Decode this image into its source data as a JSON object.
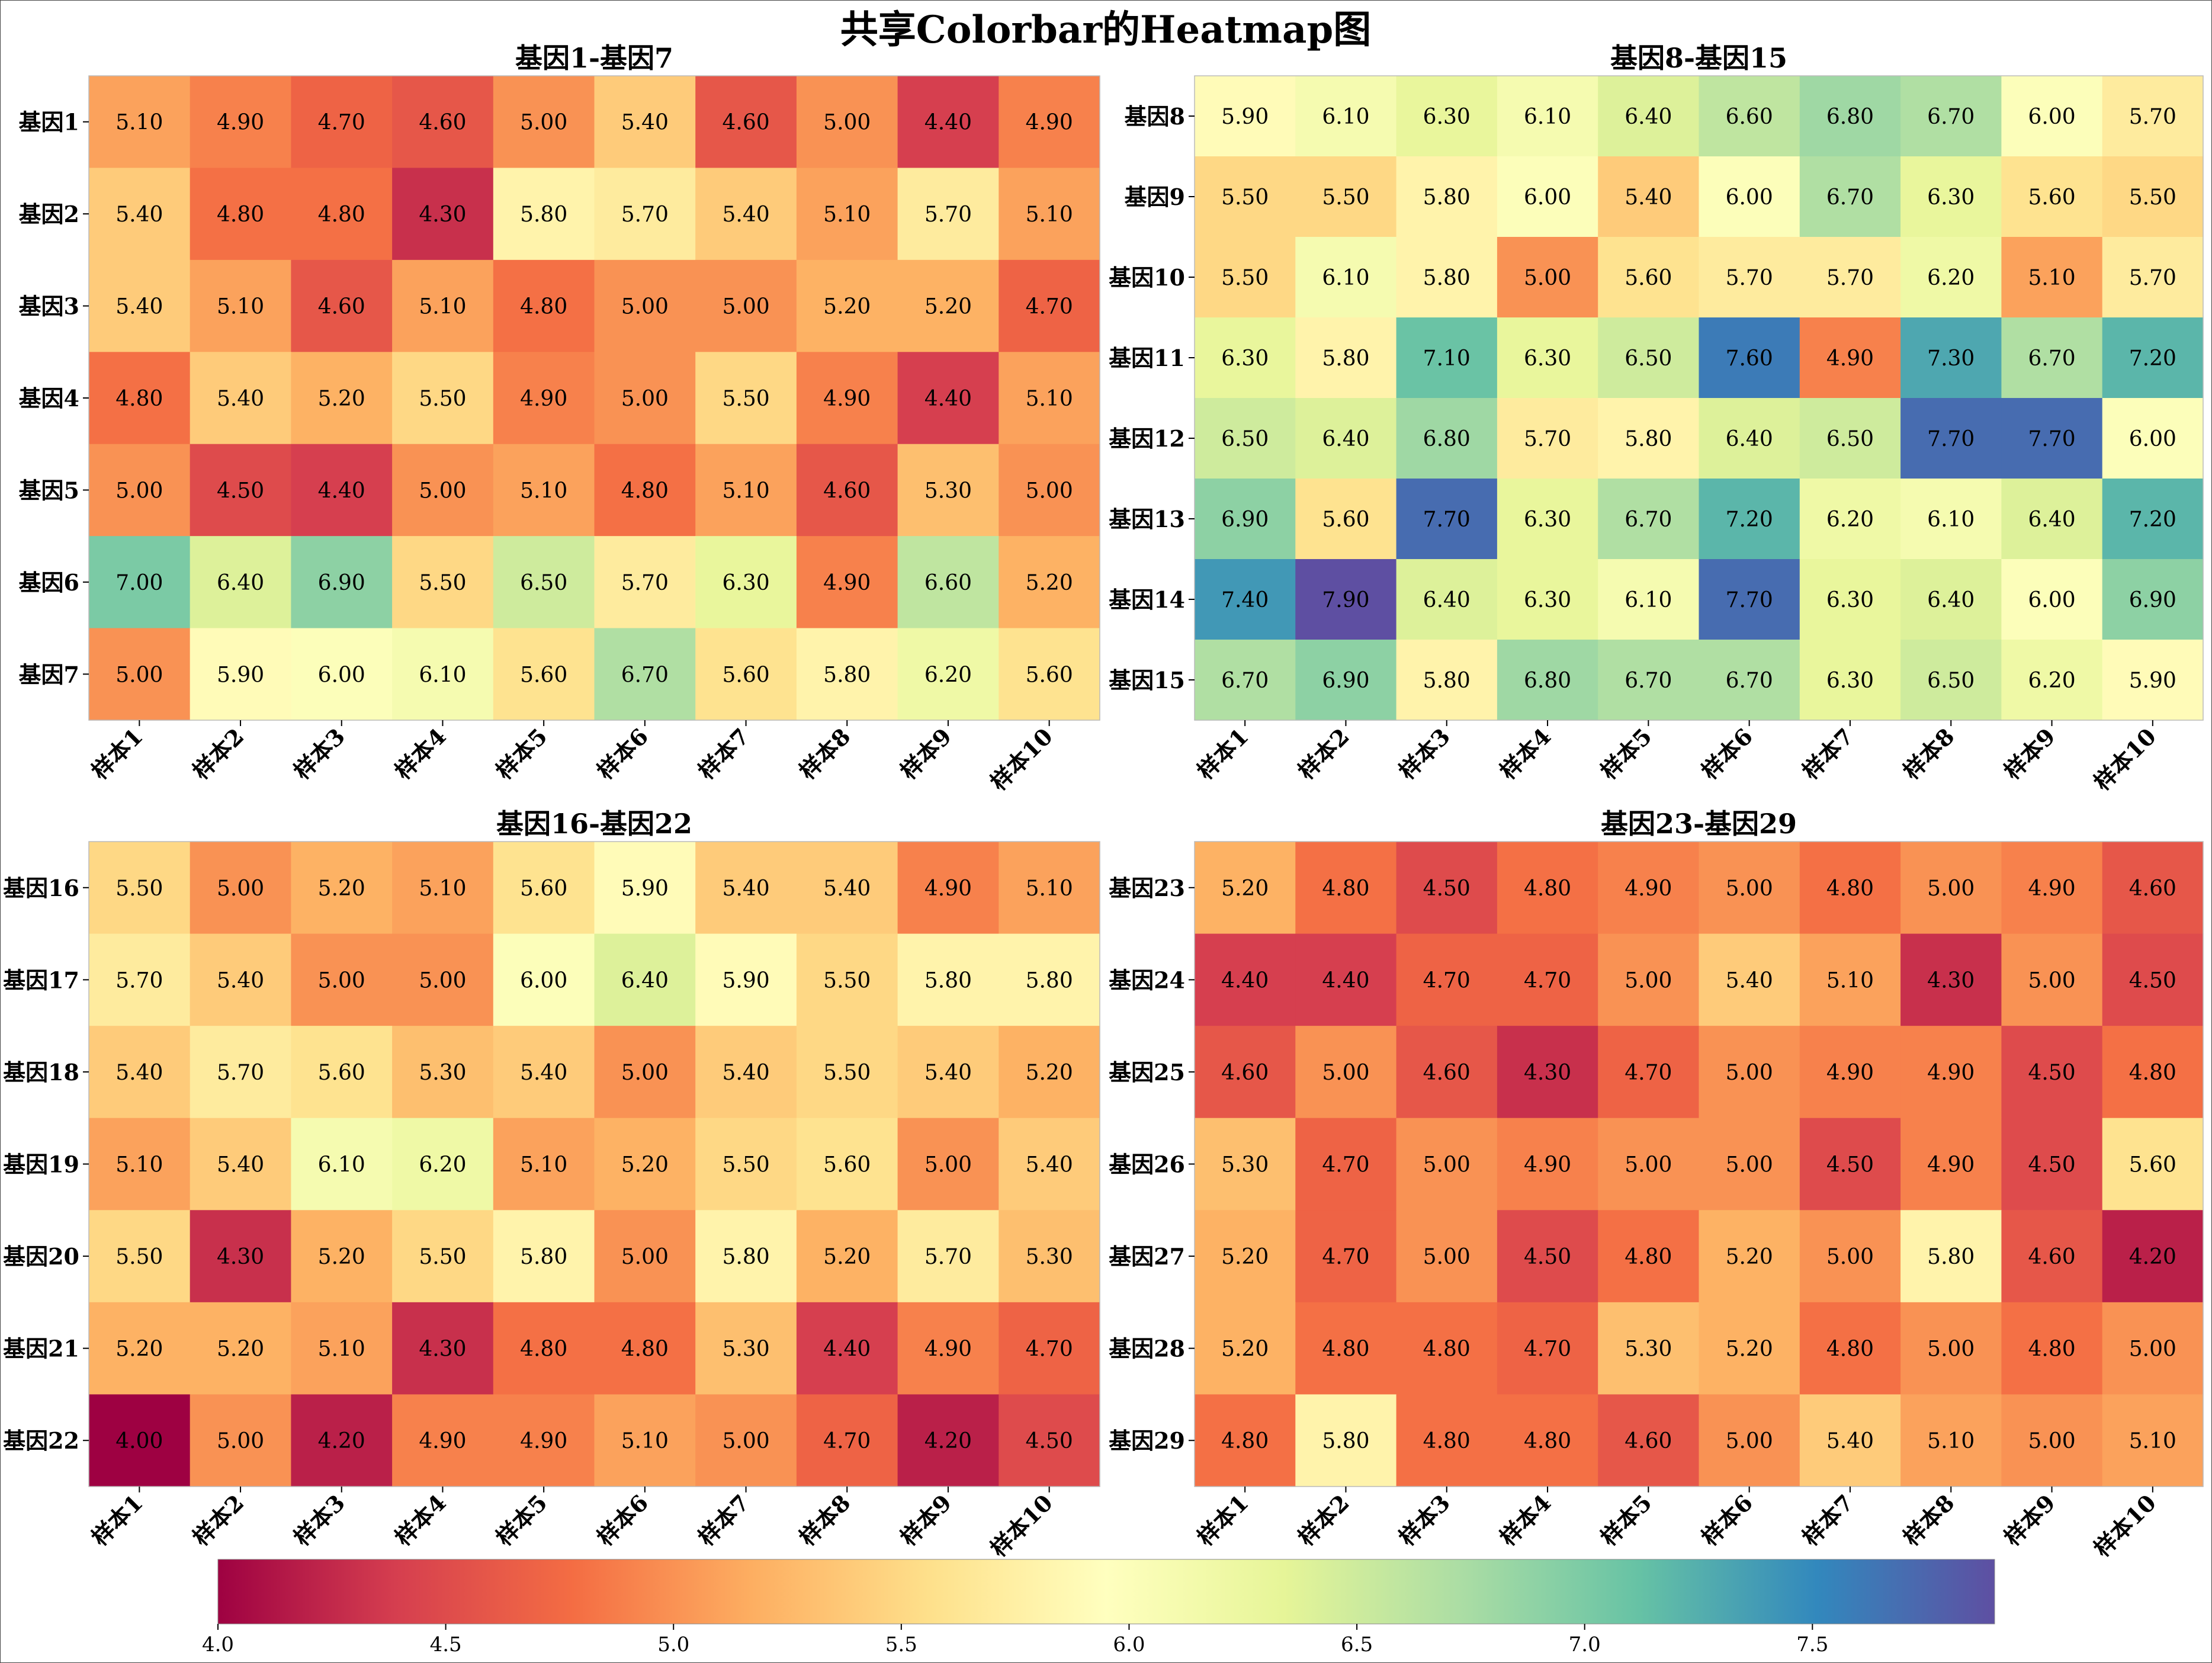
{
  "title": "共享Colorbar的Heatmap图",
  "chart_data": {
    "type": "heatmap",
    "colormap": "Spectral",
    "vmin": 4.0,
    "vmax": 7.9,
    "xticks": [
      "样本1",
      "样本2",
      "样本3",
      "样本4",
      "样本5",
      "样本6",
      "样本7",
      "样本8",
      "样本9",
      "样本10"
    ],
    "colorbar": {
      "ticks": [
        "4.0",
        "4.5",
        "5.0",
        "5.5",
        "6.0",
        "6.5",
        "7.0",
        "7.5"
      ],
      "orientation": "horizontal",
      "placement": "bottom"
    },
    "panels": [
      {
        "title": "基因1-基因7",
        "rows": [
          "基因1",
          "基因2",
          "基因3",
          "基因4",
          "基因5",
          "基因6",
          "基因7"
        ],
        "values": [
          [
            5.1,
            4.9,
            4.7,
            4.6,
            5.0,
            5.4,
            4.6,
            5.0,
            4.4,
            4.9
          ],
          [
            5.4,
            4.8,
            4.8,
            4.3,
            5.8,
            5.7,
            5.4,
            5.1,
            5.7,
            5.1
          ],
          [
            5.4,
            5.1,
            4.6,
            5.1,
            4.8,
            5.0,
            5.0,
            5.2,
            5.2,
            4.7
          ],
          [
            4.8,
            5.4,
            5.2,
            5.5,
            4.9,
            5.0,
            5.5,
            4.9,
            4.4,
            5.1
          ],
          [
            5.0,
            4.5,
            4.4,
            5.0,
            5.1,
            4.8,
            5.1,
            4.6,
            5.3,
            5.0
          ],
          [
            7.0,
            6.4,
            6.9,
            5.5,
            6.5,
            5.7,
            6.3,
            4.9,
            6.6,
            5.2
          ],
          [
            5.0,
            5.9,
            6.0,
            6.1,
            5.6,
            6.7,
            5.6,
            5.8,
            6.2,
            5.6
          ]
        ]
      },
      {
        "title": "基因8-基因15",
        "rows": [
          "基因8",
          "基因9",
          "基因10",
          "基因11",
          "基因12",
          "基因13",
          "基因14",
          "基因15"
        ],
        "values": [
          [
            5.9,
            6.1,
            6.3,
            6.1,
            6.4,
            6.6,
            6.8,
            6.7,
            6.0,
            5.7
          ],
          [
            5.5,
            5.5,
            5.8,
            6.0,
            5.4,
            6.0,
            6.7,
            6.3,
            5.6,
            5.5
          ],
          [
            5.5,
            6.1,
            5.8,
            5.0,
            5.6,
            5.7,
            5.7,
            6.2,
            5.1,
            5.7
          ],
          [
            6.3,
            5.8,
            7.1,
            6.3,
            6.5,
            7.6,
            4.9,
            7.3,
            6.7,
            7.2
          ],
          [
            6.5,
            6.4,
            6.8,
            5.7,
            5.8,
            6.4,
            6.5,
            7.7,
            7.7,
            6.0
          ],
          [
            6.9,
            5.6,
            7.7,
            6.3,
            6.7,
            7.2,
            6.2,
            6.1,
            6.4,
            7.2
          ],
          [
            7.4,
            7.9,
            6.4,
            6.3,
            6.1,
            7.7,
            6.3,
            6.4,
            6.0,
            6.9
          ],
          [
            6.7,
            6.9,
            5.8,
            6.8,
            6.7,
            6.7,
            6.3,
            6.5,
            6.2,
            5.9
          ]
        ]
      },
      {
        "title": "基因16-基因22",
        "rows": [
          "基因16",
          "基因17",
          "基因18",
          "基因19",
          "基因20",
          "基因21",
          "基因22"
        ],
        "values": [
          [
            5.5,
            5.0,
            5.2,
            5.1,
            5.6,
            5.9,
            5.4,
            5.4,
            4.9,
            5.1
          ],
          [
            5.7,
            5.4,
            5.0,
            5.0,
            6.0,
            6.4,
            5.9,
            5.5,
            5.8,
            5.8
          ],
          [
            5.4,
            5.7,
            5.6,
            5.3,
            5.4,
            5.0,
            5.4,
            5.5,
            5.4,
            5.2
          ],
          [
            5.1,
            5.4,
            6.1,
            6.2,
            5.1,
            5.2,
            5.5,
            5.6,
            5.0,
            5.4
          ],
          [
            5.5,
            4.3,
            5.2,
            5.5,
            5.8,
            5.0,
            5.8,
            5.2,
            5.7,
            5.3
          ],
          [
            5.2,
            5.2,
            5.1,
            4.3,
            4.8,
            4.8,
            5.3,
            4.4,
            4.9,
            4.7
          ],
          [
            4.0,
            5.0,
            4.2,
            4.9,
            4.9,
            5.1,
            5.0,
            4.7,
            4.2,
            4.5
          ]
        ]
      },
      {
        "title": "基因23-基因29",
        "rows": [
          "基因23",
          "基因24",
          "基因25",
          "基因26",
          "基因27",
          "基因28",
          "基因29"
        ],
        "values": [
          [
            5.2,
            4.8,
            4.5,
            4.8,
            4.9,
            5.0,
            4.8,
            5.0,
            4.9,
            4.6
          ],
          [
            4.4,
            4.4,
            4.7,
            4.7,
            5.0,
            5.4,
            5.1,
            4.3,
            5.0,
            4.5
          ],
          [
            4.6,
            5.0,
            4.6,
            4.3,
            4.7,
            5.0,
            4.9,
            4.9,
            4.5,
            4.8
          ],
          [
            5.3,
            4.7,
            5.0,
            4.9,
            5.0,
            5.0,
            4.5,
            4.9,
            4.5,
            5.6
          ],
          [
            5.2,
            4.7,
            5.0,
            4.5,
            4.8,
            5.2,
            5.0,
            5.8,
            4.6,
            4.2
          ],
          [
            5.2,
            4.8,
            4.8,
            4.7,
            5.3,
            5.2,
            4.8,
            5.0,
            4.8,
            5.0
          ],
          [
            4.8,
            5.8,
            4.8,
            4.8,
            4.6,
            5.0,
            5.4,
            5.1,
            5.0,
            5.1
          ]
        ]
      }
    ]
  }
}
